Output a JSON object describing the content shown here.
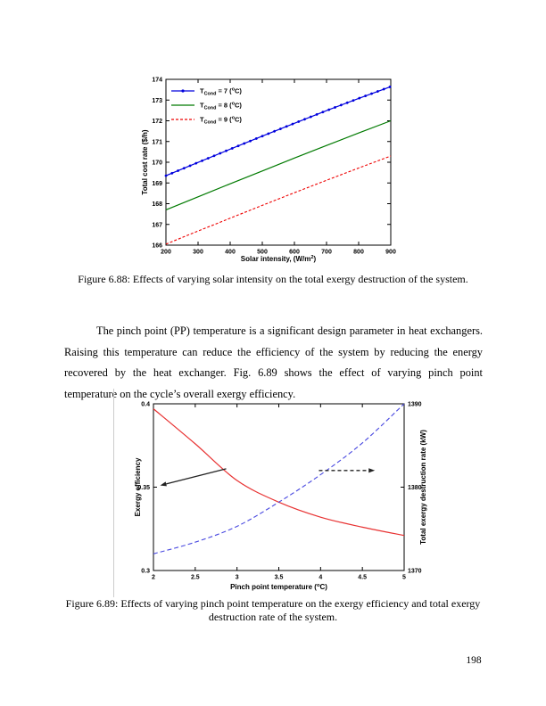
{
  "page": {
    "number": "198"
  },
  "captions": {
    "fig688": "Figure 6.88: Effects of varying solar intensity on the total exergy destruction of the system.",
    "fig689_line1": "Figure 6.89: Effects of varying pinch point temperature on the exergy efficiency and total exergy",
    "fig689_line2": "destruction rate of the system."
  },
  "paragraph": "The pinch point (PP) temperature is a significant design parameter in heat exchangers. Raising this temperature can reduce the efficiency of the system by reducing the energy recovered by the heat exchanger. Fig. 6.89 shows the effect of varying pinch point temperature on the cycle’s overall exergy efficiency.",
  "chart_data": [
    {
      "id": "fig688",
      "type": "line",
      "x": [
        200,
        300,
        400,
        500,
        600,
        700,
        800,
        900
      ],
      "series": [
        {
          "name": "T_Cond = 7 (degC)",
          "color": "#0000dd",
          "line": "solid",
          "markers": "dot",
          "label_segments": [
            {
              "t": "T"
            },
            {
              "t": "Cond",
              "v": "sub"
            },
            {
              "t": " = 7 ("
            },
            {
              "t": "o",
              "v": "sup"
            },
            {
              "t": "C)"
            }
          ],
          "values": [
            169.35,
            169.99,
            170.63,
            171.26,
            171.88,
            172.49,
            173.08,
            173.65
          ]
        },
        {
          "name": "T_Cond = 8 (degC)",
          "color": "#007a00",
          "line": "solid",
          "markers": "none",
          "label_segments": [
            {
              "t": "T"
            },
            {
              "t": "Cond",
              "v": "sub"
            },
            {
              "t": " = 8 ("
            },
            {
              "t": "o",
              "v": "sup"
            },
            {
              "t": "C)"
            }
          ],
          "values": [
            167.7,
            168.33,
            168.96,
            169.58,
            170.2,
            170.81,
            171.41,
            172.0
          ]
        },
        {
          "name": "T_Cond = 9 (degC)",
          "color": "#ee0000",
          "line": "dashed",
          "markers": "none",
          "label_segments": [
            {
              "t": "T"
            },
            {
              "t": "Cond",
              "v": "sub"
            },
            {
              "t": " = 9 ("
            },
            {
              "t": "o",
              "v": "sup"
            },
            {
              "t": "C)"
            }
          ],
          "values": [
            166.05,
            166.68,
            167.3,
            167.92,
            168.53,
            169.13,
            169.72,
            170.3
          ]
        }
      ],
      "xlabel": "Solar intensity, (W/m2)",
      "xlabel_segments": [
        {
          "t": "Solar intensity, (W/m"
        },
        {
          "t": "2",
          "v": "sup"
        },
        {
          "t": ")"
        }
      ],
      "ylabel": "Total cost rate ($/h)",
      "xlim": [
        200,
        900
      ],
      "ylim": [
        166,
        174
      ],
      "xticks": [
        200,
        300,
        400,
        500,
        600,
        700,
        800,
        900
      ],
      "yticks": [
        166,
        167,
        168,
        169,
        170,
        171,
        172,
        173,
        174
      ],
      "grid": false,
      "legend_position": "top-left"
    },
    {
      "id": "fig689",
      "type": "line-dual-axis",
      "x": [
        2,
        2.5,
        3,
        3.5,
        4,
        4.5,
        5
      ],
      "series": [
        {
          "name": "Exergy efficiency",
          "axis": "left",
          "color": "#e83232",
          "line": "solid",
          "markers": "none",
          "values": [
            0.397,
            0.376,
            0.354,
            0.341,
            0.332,
            0.326,
            0.321
          ]
        },
        {
          "name": "Total exergy destruction rate (kW)",
          "axis": "right",
          "color": "#4848e0",
          "line": "dashed",
          "markers": "none",
          "values": [
            1372,
            1373.4,
            1375.3,
            1378.2,
            1381.5,
            1385.3,
            1390
          ]
        }
      ],
      "xlabel": "Pinch point temperature (degC)",
      "xlabel_segments": [
        {
          "t": "Pinch point temperature ("
        },
        {
          "t": "o",
          "v": "sup"
        },
        {
          "t": "C)"
        }
      ],
      "ylabel_left": "Exergy efficiency",
      "ylabel_right": "Total exergy destruction rate (kW)",
      "xlim": [
        2,
        5
      ],
      "ylim_left": [
        0.3,
        0.4
      ],
      "ylim_right": [
        1370,
        1390
      ],
      "xticks": [
        2,
        2.5,
        3,
        3.5,
        4,
        4.5,
        5
      ],
      "xtick_labels": [
        "2",
        "2.5",
        "3",
        "3.5",
        "4",
        "4.5",
        "5"
      ],
      "yticks_left": [
        0.3,
        0.35,
        0.4
      ],
      "ytick_labels_left": [
        "0.3",
        "0.35",
        "0.4"
      ],
      "yticks_right": [
        1370,
        1380,
        1390
      ],
      "grid": false,
      "annotations": [
        {
          "type": "arrow",
          "style": "solid",
          "meaning": "points-to-left-axis-series",
          "x1": 2.87,
          "y1": 0.361,
          "x2": 2.08,
          "y2": 0.351
        },
        {
          "type": "arrow",
          "style": "dashed",
          "meaning": "points-to-right-axis-series",
          "x1": 3.98,
          "y1": 0.36,
          "x2": 4.65,
          "y2": 0.36
        }
      ]
    }
  ]
}
